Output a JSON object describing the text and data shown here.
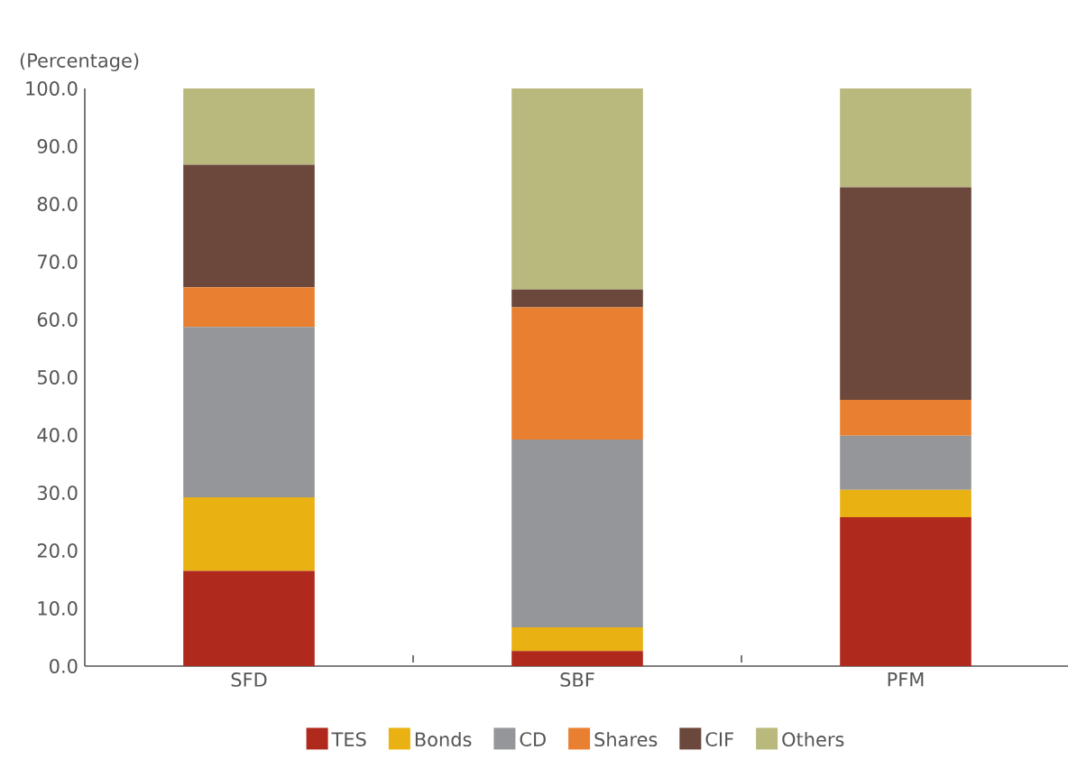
{
  "chart_data": {
    "type": "bar",
    "stacked": true,
    "ylabel": "(Percentage)",
    "categories": [
      "SFD",
      "SBF",
      "PFM"
    ],
    "series": [
      {
        "name": "TES",
        "color": "#b0291d",
        "values": [
          16.5,
          2.6,
          25.8
        ]
      },
      {
        "name": "Bonds",
        "color": "#e9b111",
        "values": [
          12.7,
          4.1,
          4.7
        ]
      },
      {
        "name": "CD",
        "color": "#959699",
        "values": [
          29.5,
          32.5,
          9.4
        ]
      },
      {
        "name": "Shares",
        "color": "#e97f30",
        "values": [
          6.9,
          22.9,
          6.2
        ]
      },
      {
        "name": "CIF",
        "color": "#6b483b",
        "values": [
          21.2,
          3.1,
          36.8
        ]
      },
      {
        "name": "Others",
        "color": "#b9b97e",
        "values": [
          13.2,
          34.8,
          17.1
        ]
      }
    ],
    "ylim": [
      0,
      100
    ],
    "yticks": [
      {
        "value": 0,
        "label": "0.0"
      },
      {
        "value": 10,
        "label": "10.0"
      },
      {
        "value": 20,
        "label": "20.0"
      },
      {
        "value": 30,
        "label": "30.0"
      },
      {
        "value": 40,
        "label": "40.0"
      },
      {
        "value": 50,
        "label": "50.0"
      },
      {
        "value": 60,
        "label": "60.0"
      },
      {
        "value": 70,
        "label": "70.0"
      },
      {
        "value": 80,
        "label": "80.0"
      },
      {
        "value": 90,
        "label": "90.0"
      },
      {
        "value": 100,
        "label": "100.0"
      }
    ],
    "grid": false,
    "legend": "bottom"
  }
}
